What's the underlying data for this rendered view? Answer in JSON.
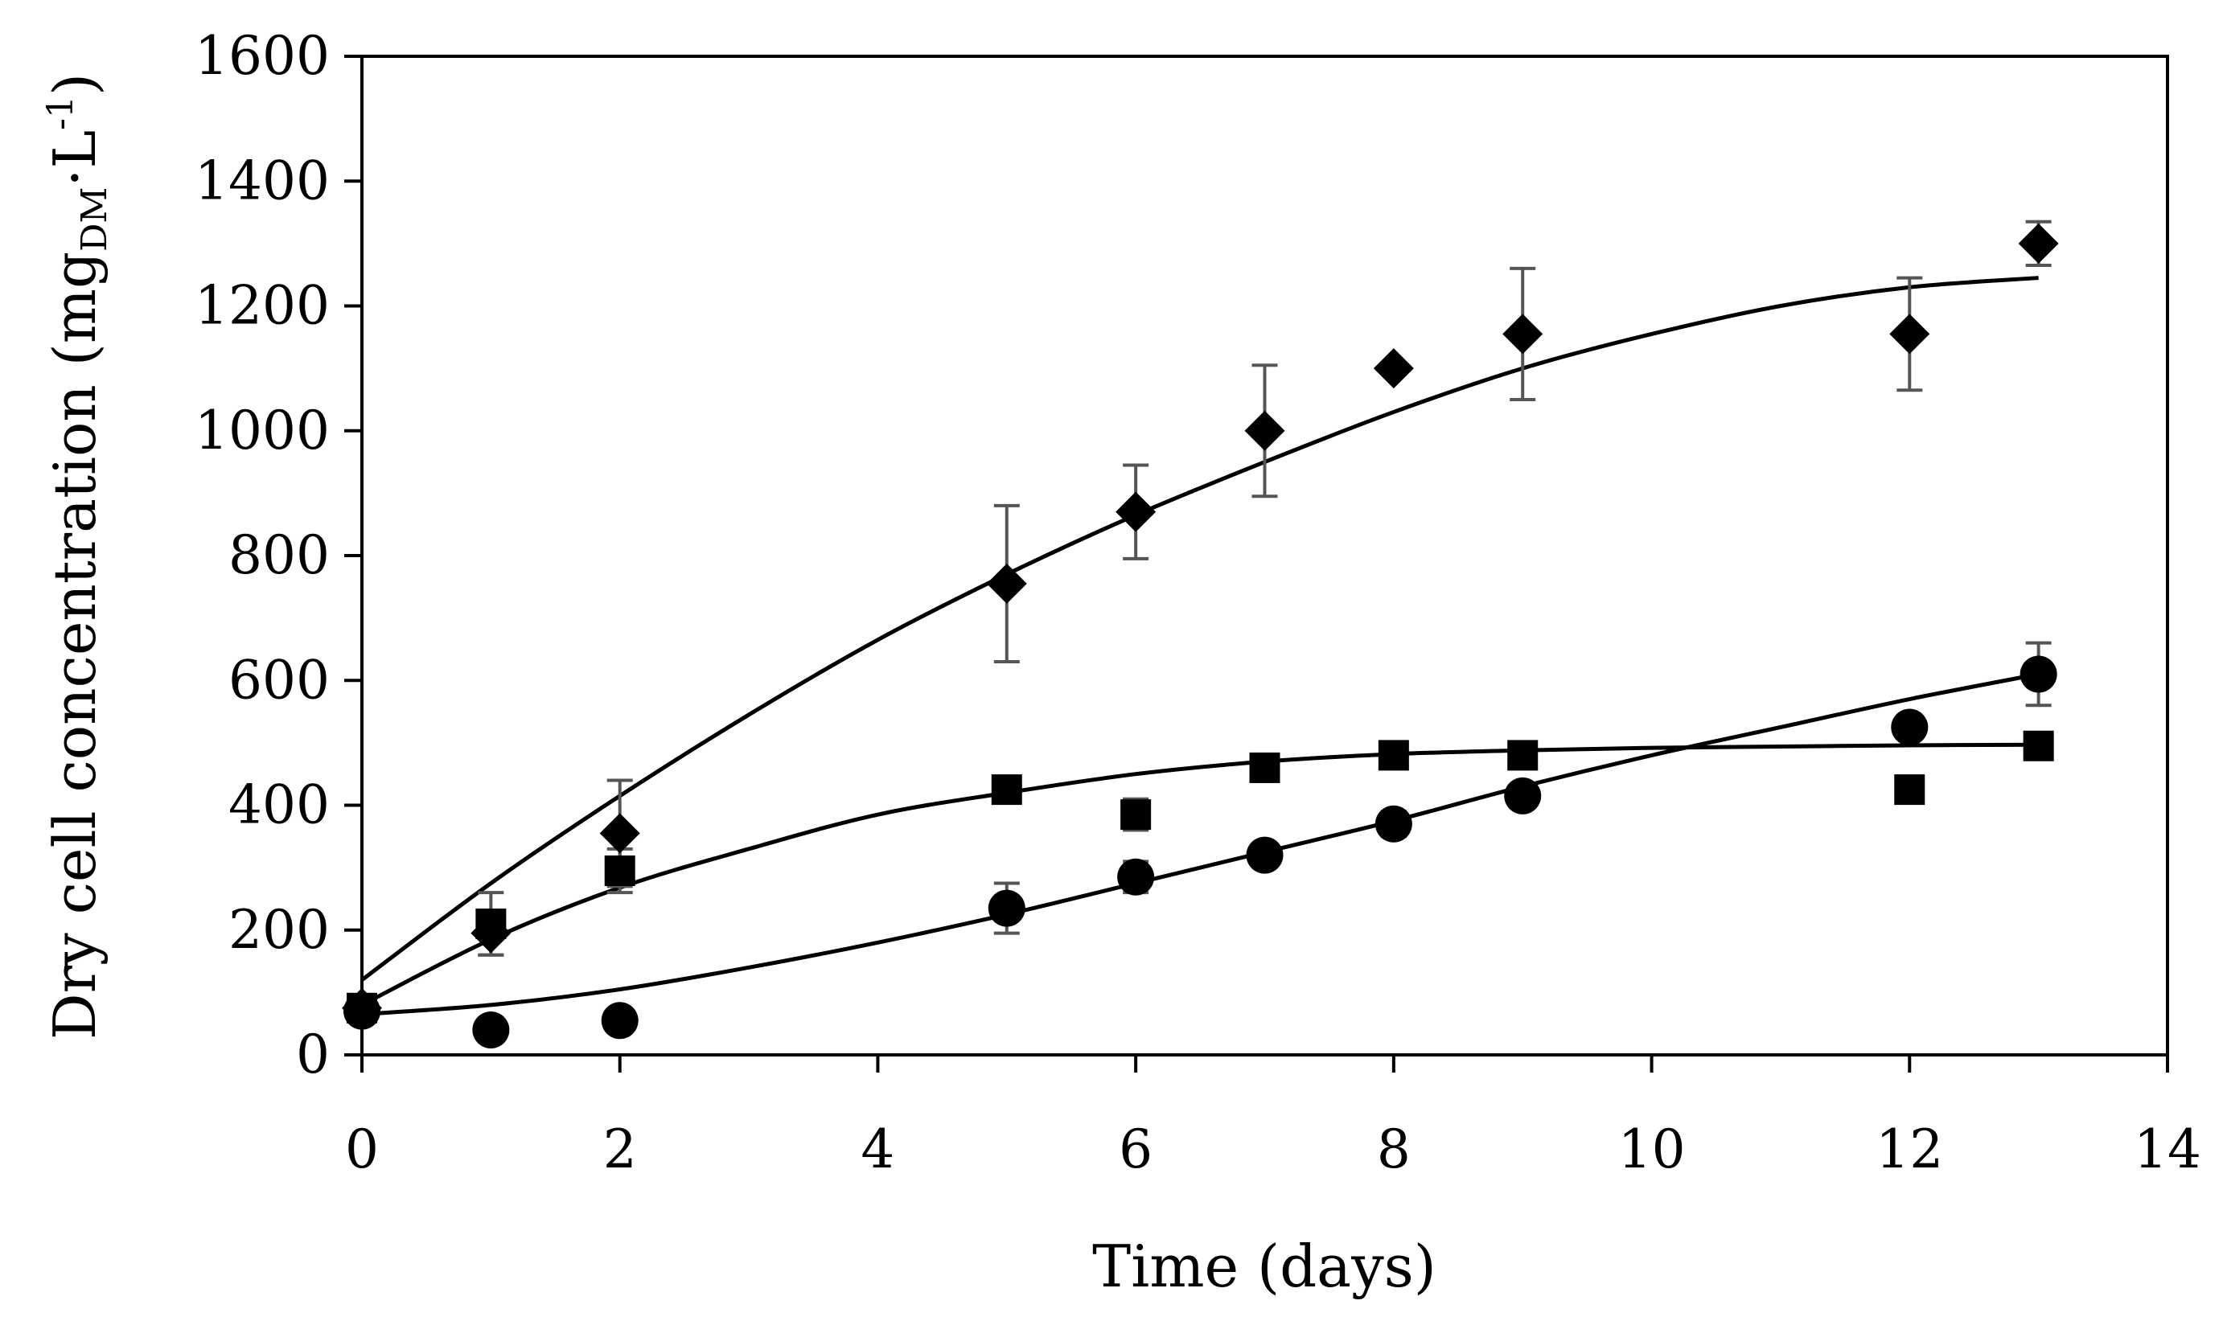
{
  "colors": {
    "axis": "#000000",
    "marker": "#000000",
    "fit_line": "#000000",
    "error_bar": "#555555",
    "background": "#ffffff"
  },
  "chart_data": {
    "type": "scatter",
    "title": "",
    "xlabel": "Time (days)",
    "ylabel": {
      "main": "Dry cell concentration (mg",
      "subscript": "DM",
      "dot": "·L",
      "superscript": "-1",
      "close": ")"
    },
    "xlim": [
      0,
      14
    ],
    "ylim": [
      0,
      1600
    ],
    "xticks": [
      0,
      2,
      4,
      6,
      8,
      10,
      12,
      14
    ],
    "yticks": [
      0,
      200,
      400,
      600,
      800,
      1000,
      1200,
      1400,
      1600
    ],
    "grid": false,
    "legend": "none",
    "series": [
      {
        "name": "diamond series",
        "marker": "diamond",
        "points": [
          {
            "x": 0,
            "y": 75
          },
          {
            "x": 1,
            "y": 195,
            "err": 35
          },
          {
            "x": 2,
            "y": 355,
            "err": 85
          },
          {
            "x": 5,
            "y": 755,
            "err": 125
          },
          {
            "x": 6,
            "y": 870,
            "err": 75
          },
          {
            "x": 7,
            "y": 1000,
            "err": 105
          },
          {
            "x": 8,
            "y": 1100
          },
          {
            "x": 9,
            "y": 1155,
            "err": 105
          },
          {
            "x": 12,
            "y": 1155,
            "err": 90
          },
          {
            "x": 13,
            "y": 1300,
            "err": 35
          }
        ],
        "fit": {
          "x": [
            0,
            1,
            2,
            3,
            4,
            5,
            6,
            7,
            8,
            9,
            10,
            11,
            12,
            13
          ],
          "y": [
            120,
            275,
            415,
            545,
            665,
            770,
            865,
            950,
            1030,
            1100,
            1155,
            1200,
            1230,
            1245
          ]
        }
      },
      {
        "name": "square series",
        "marker": "square",
        "points": [
          {
            "x": 0,
            "y": 75
          },
          {
            "x": 1,
            "y": 210,
            "err": 50
          },
          {
            "x": 2,
            "y": 295,
            "err": 35
          },
          {
            "x": 5,
            "y": 425,
            "err": 15
          },
          {
            "x": 6,
            "y": 385,
            "err": 25
          },
          {
            "x": 7,
            "y": 460
          },
          {
            "x": 8,
            "y": 480
          },
          {
            "x": 9,
            "y": 480
          },
          {
            "x": 12,
            "y": 425
          },
          {
            "x": 13,
            "y": 495
          }
        ],
        "fit": {
          "x": [
            0,
            1,
            2,
            3,
            4,
            5,
            6,
            7,
            8,
            9,
            10,
            11,
            12,
            13
          ],
          "y": [
            80,
            185,
            268,
            330,
            385,
            420,
            450,
            470,
            482,
            488,
            492,
            494,
            496,
            497
          ]
        }
      },
      {
        "name": "circle series",
        "marker": "circle",
        "points": [
          {
            "x": 0,
            "y": 70
          },
          {
            "x": 1,
            "y": 40
          },
          {
            "x": 2,
            "y": 55
          },
          {
            "x": 5,
            "y": 235,
            "err": 40
          },
          {
            "x": 6,
            "y": 285,
            "err": 25
          },
          {
            "x": 7,
            "y": 320
          },
          {
            "x": 8,
            "y": 370,
            "err": 20
          },
          {
            "x": 9,
            "y": 415,
            "err": 15
          },
          {
            "x": 12,
            "y": 525
          },
          {
            "x": 13,
            "y": 610,
            "err": 50
          }
        ],
        "fit": {
          "x": [
            0,
            1,
            2,
            3,
            4,
            5,
            6,
            7,
            8,
            9,
            10,
            11,
            12,
            13
          ],
          "y": [
            65,
            80,
            105,
            140,
            180,
            225,
            275,
            325,
            375,
            430,
            480,
            525,
            570,
            610
          ]
        }
      }
    ]
  }
}
